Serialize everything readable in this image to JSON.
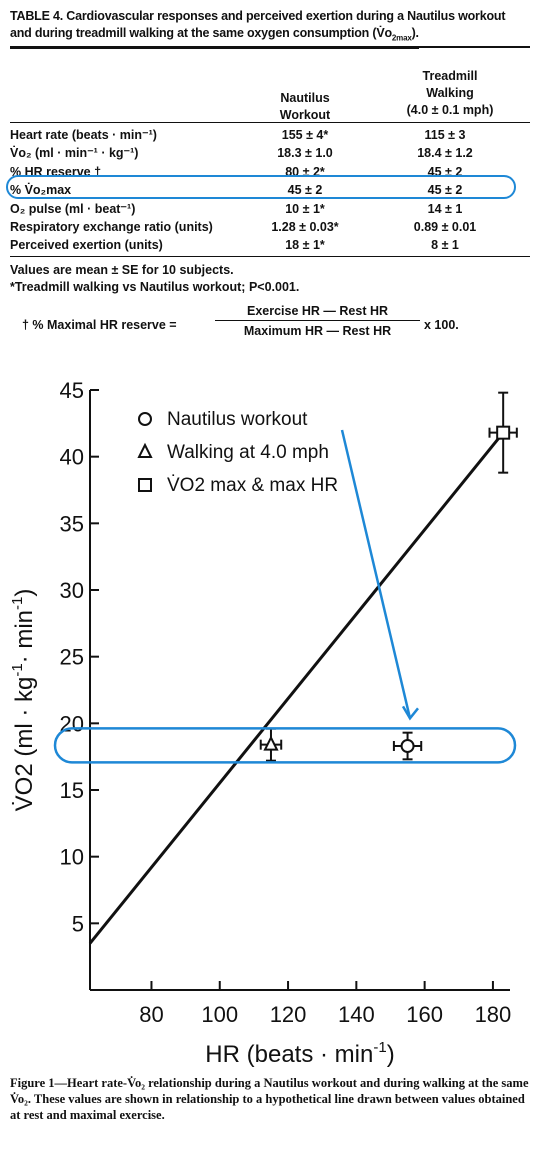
{
  "table": {
    "caption_line1": "TABLE 4. Cardiovascular responses and perceived exertion during a Nautilus workout",
    "caption_line2": "and during treadmill walking at the same oxygen consumption (V̇o",
    "caption_line2_sub": "2max",
    "caption_line2_end": ").",
    "col_nautilus": [
      "Nautilus",
      "Workout"
    ],
    "col_treadmill": [
      "Treadmill",
      "Walking",
      "(4.0 ± 0.1 mph)"
    ],
    "rows": [
      {
        "label": "Heart rate (beats · min⁻¹)",
        "nautilus": "155 ± 4*",
        "treadmill": "115 ± 3"
      },
      {
        "label": "V̇o₂ (ml · min⁻¹ · kg⁻¹)",
        "nautilus": "18.3 ± 1.0",
        "treadmill": "18.4 ± 1.2"
      },
      {
        "label": "% HR reserve †",
        "nautilus": "80 ± 2*",
        "treadmill": "45 ± 2"
      },
      {
        "label": "% V̇o₂max",
        "nautilus": "45 ± 2",
        "treadmill": "45 ± 2"
      },
      {
        "label": "O₂ pulse (ml · beat⁻¹)",
        "nautilus": "10 ± 1*",
        "treadmill": "14 ± 1"
      },
      {
        "label": "Respiratory exchange ratio (units)",
        "nautilus": "1.28 ± 0.03*",
        "treadmill": "0.89 ± 0.01"
      },
      {
        "label": "Perceived exertion (units)",
        "nautilus": "18 ± 1*",
        "treadmill": "8 ± 1"
      }
    ],
    "footnote1": "Values are mean ± SE for 10 subjects.",
    "footnote2": "*Treadmill walking vs Nautilus workout; P<0.001.",
    "formula_lhs": "† % Maximal HR reserve =",
    "formula_num": "Exercise HR — Rest HR",
    "formula_den": "Maximum HR — Rest HR",
    "formula_tail": "x 100."
  },
  "annotation_color": "#1e88d6",
  "chart_data": {
    "type": "scatter",
    "xlabel": "HR (beats · min",
    "xlabel_sup": "-1",
    "xlabel_end": ")",
    "ylabel": "V̇O2 (ml · kg",
    "ylabel_sup": "-1",
    "ylabel_mid": "· min",
    "ylabel_end": ")",
    "xlim": [
      62,
      185
    ],
    "ylim": [
      0,
      45
    ],
    "x_ticks": [
      80,
      100,
      120,
      140,
      160,
      180
    ],
    "y_ticks": [
      5,
      10,
      15,
      20,
      25,
      30,
      35,
      40,
      45
    ],
    "line": {
      "x": [
        62,
        183
      ],
      "y": [
        3.5,
        41.8
      ]
    },
    "series": [
      {
        "name": "Nautilus workout",
        "marker": "circle",
        "x": 155,
        "y": 18.3,
        "xerr": 4,
        "yerr": 1.0
      },
      {
        "name": "Walking at 4.0 mph",
        "marker": "triangle",
        "x": 115,
        "y": 18.4,
        "xerr": 3,
        "yerr": 1.2
      },
      {
        "name": "V̇O2 max & max HR",
        "marker": "square",
        "x": 183,
        "y": 41.8,
        "xerr": 4,
        "yerr": 3
      }
    ],
    "legend_position": "top-left"
  },
  "figure_caption": "Figure 1—Heart rate-V̇o₂ relationship during a Nautilus workout and during walking at the same V̇o₂. These values are shown in relationship to a hypothetical line drawn between values obtained at rest and maximal exercise."
}
